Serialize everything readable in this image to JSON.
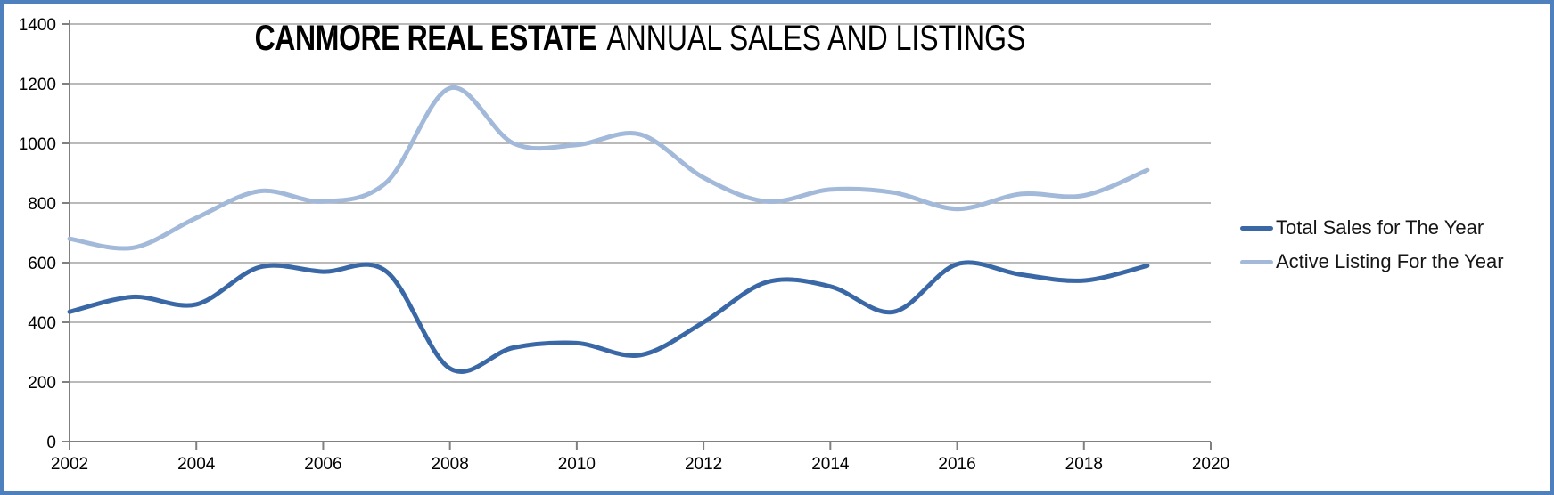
{
  "chart_data": {
    "type": "line",
    "title": "CANMORE REAL ESTATE ANNUAL SALES AND LISTINGS",
    "title_bold": "CANMORE REAL ESTATE",
    "title_light": "ANNUAL SALES AND LISTINGS",
    "x": [
      2002,
      2003,
      2004,
      2005,
      2006,
      2007,
      2008,
      2009,
      2010,
      2011,
      2012,
      2013,
      2014,
      2015,
      2016,
      2017,
      2018,
      2019
    ],
    "series": [
      {
        "name": "Total Sales for The Year",
        "color": "#3a68a6",
        "values": [
          435,
          485,
          460,
          585,
          570,
          570,
          245,
          315,
          330,
          290,
          400,
          535,
          520,
          435,
          595,
          560,
          540,
          590
        ]
      },
      {
        "name": "Active Listing For the Year",
        "color": "#a2b9da",
        "values": [
          680,
          650,
          750,
          840,
          805,
          870,
          1185,
          1000,
          995,
          1030,
          885,
          805,
          845,
          835,
          780,
          830,
          825,
          910
        ]
      }
    ],
    "xlabel": "",
    "ylabel": "",
    "ylim": [
      0,
      1400
    ],
    "x_axis_range": [
      2002,
      2020
    ],
    "y_ticks": [
      0,
      200,
      400,
      600,
      800,
      1000,
      1200,
      1400
    ],
    "x_ticks": [
      2002,
      2004,
      2006,
      2008,
      2010,
      2012,
      2014,
      2016,
      2018,
      2020
    ],
    "grid": true,
    "line_style": "smooth",
    "legend_position": "right"
  },
  "colors": {
    "frame": "#4e80bd",
    "gridline": "#a3a3a3",
    "axis": "#808080",
    "text": "#000000"
  }
}
